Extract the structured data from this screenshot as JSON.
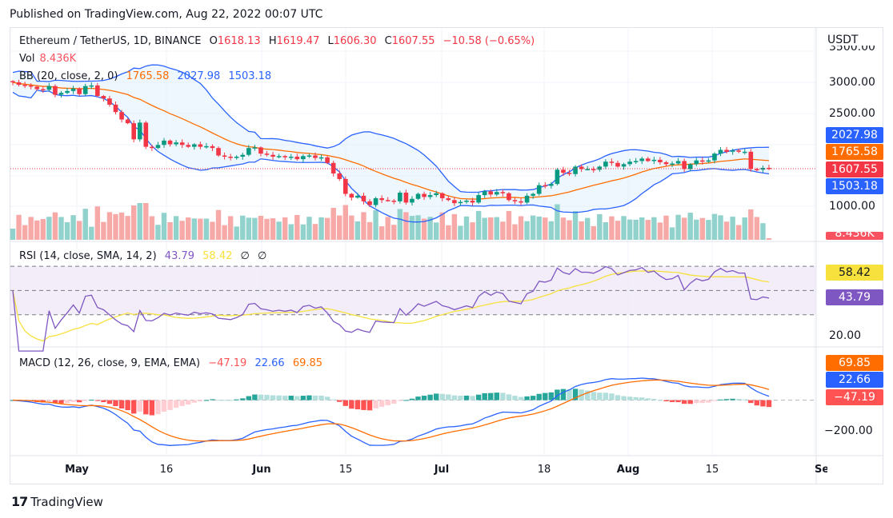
{
  "header": {
    "published": "Published on TradingView.com, Aug 22, 2022 00:07 UTC"
  },
  "symbol": {
    "title": "Ethereum / TetherUS, 1D, BINANCE",
    "o_label": "O",
    "o": "1618.13",
    "h_label": "H",
    "h": "1619.47",
    "l_label": "L",
    "l": "1606.30",
    "c_label": "C",
    "c": "1607.55",
    "change": "−10.58 (−0.65%)"
  },
  "volume": {
    "label": "Vol",
    "value": "8.436K"
  },
  "bb": {
    "label": "BB (20, close, 2, 0)",
    "basis": "1765.58",
    "upper": "2027.98",
    "lower": "1503.18"
  },
  "rsi": {
    "label": "RSI (14, close, SMA, 14, 2)",
    "rsi": "43.79",
    "sma": "58.42",
    "extra1": "∅",
    "extra2": "∅"
  },
  "macd": {
    "label": "MACD (12, 26, close, 9, EMA, EMA)",
    "hist": "−47.19",
    "macd": "22.66",
    "signal": "69.85"
  },
  "price_axis": {
    "currency": "USDT",
    "ticks": [
      "3500.00",
      "3000.00",
      "2500.00",
      "1000.00"
    ],
    "tags": [
      {
        "value": "2027.98",
        "color": "#2962ff"
      },
      {
        "value": "1765.58",
        "color": "#ff6d00"
      },
      {
        "value": "1607.55",
        "color": "#f23645"
      },
      {
        "value": "1503.18",
        "color": "#2962ff"
      },
      {
        "value": "8.436K",
        "color": "#f7525f"
      }
    ]
  },
  "rsi_axis": {
    "ticks": [
      "20.00"
    ],
    "tags": [
      {
        "value": "58.42",
        "color": "#f7e13c",
        "text": "#131722"
      },
      {
        "value": "43.79",
        "color": "#7e57c2",
        "text": "#ffffff"
      }
    ]
  },
  "macd_axis": {
    "ticks": [
      "−200.00"
    ],
    "tags": [
      {
        "value": "69.85",
        "color": "#ff6d00"
      },
      {
        "value": "22.66",
        "color": "#2962ff"
      },
      {
        "value": "−47.19",
        "color": "#ff5252"
      }
    ]
  },
  "time_axis": {
    "labels": [
      {
        "text": "May",
        "bold": true
      },
      {
        "text": "16",
        "bold": false
      },
      {
        "text": "Jun",
        "bold": true
      },
      {
        "text": "15",
        "bold": false
      },
      {
        "text": "Jul",
        "bold": true
      },
      {
        "text": "18",
        "bold": false
      },
      {
        "text": "Aug",
        "bold": true
      },
      {
        "text": "15",
        "bold": false
      },
      {
        "text": "Sep",
        "bold": true
      }
    ]
  },
  "footer": {
    "brand": "TradingView"
  },
  "colors": {
    "up": "#089981",
    "down": "#f23645",
    "vol_up": "#92d2cc",
    "vol_down": "#f7a9a7",
    "bb_upper": "#2962ff",
    "bb_basis": "#ff6d00",
    "bb_fill": "#e3f2fd",
    "rsi": "#7e57c2",
    "rsi_sma": "#f7e13c",
    "rsi_band": "#ede7f6",
    "macd": "#2962ff",
    "signal": "#ff6d00",
    "hist_up_strong": "#26a69a",
    "hist_up_weak": "#b2dfdb",
    "hist_down_strong": "#ff5252",
    "hist_down_weak": "#ffcdd2"
  },
  "chart_data": {
    "type": "candlestick",
    "title": "Ethereum / TetherUS, 1D, BINANCE",
    "ylabel": "USDT",
    "price_ylim": [
      800,
      3500
    ],
    "x_start": "2022-04-21",
    "x_end": "2022-08-21",
    "close_path": [
      3000,
      2960,
      2950,
      2930,
      2890,
      2880,
      2940,
      2800,
      2830,
      2860,
      2900,
      2810,
      2940,
      2950,
      2780,
      2740,
      2640,
      2520,
      2400,
      2340,
      2080,
      2350,
      1960,
      1940,
      1990,
      2060,
      2000,
      2030,
      1990,
      1960,
      2000,
      1960,
      1970,
      1940,
      1820,
      1800,
      1780,
      1800,
      1830,
      1940,
      1950,
      1850,
      1830,
      1800,
      1810,
      1790,
      1800,
      1760,
      1810,
      1820,
      1780,
      1790,
      1700,
      1530,
      1440,
      1200,
      1140,
      1170,
      1080,
      1020,
      1130,
      1100,
      1090,
      1080,
      1220,
      1060,
      1120,
      1200,
      1150,
      1180,
      1210,
      1130,
      1100,
      1050,
      1070,
      1090,
      1060,
      1180,
      1240,
      1190,
      1230,
      1210,
      1100,
      1080,
      1060,
      1170,
      1200,
      1340,
      1330,
      1360,
      1590,
      1540,
      1520,
      1640,
      1600,
      1600,
      1590,
      1640,
      1720,
      1700,
      1640,
      1680,
      1720,
      1730,
      1770,
      1730,
      1750,
      1710,
      1680,
      1690,
      1730,
      1600,
      1680,
      1740,
      1720,
      1740,
      1850,
      1910,
      1880,
      1900,
      1880,
      1880,
      1600,
      1590,
      1620,
      1607.55
    ],
    "bb_upper_last": 2027.98,
    "bb_basis_last": 1765.58,
    "bb_lower_last": 1503.18,
    "volume_last": "8.436K",
    "rsi_last": 43.79,
    "rsi_sma_last": 58.42,
    "rsi_bands": [
      30,
      50,
      70
    ],
    "macd_last": 22.66,
    "signal_last": 69.85,
    "hist_last": -47.19,
    "macd_ylim": [
      -260,
      160
    ]
  }
}
